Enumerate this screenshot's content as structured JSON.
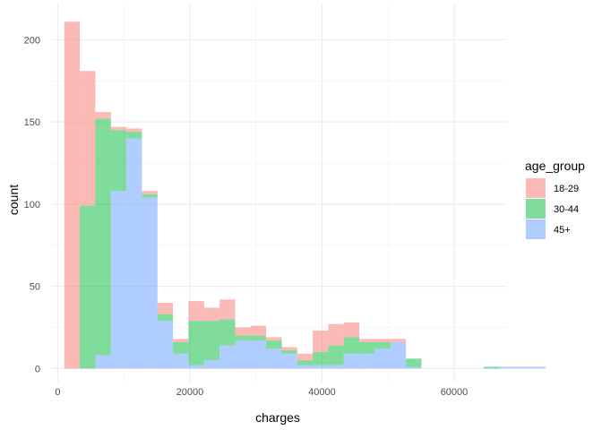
{
  "chart_data": {
    "type": "bar",
    "subtype": "stacked-histogram",
    "xlabel": "charges",
    "ylabel": "count",
    "xlim": [
      -1000,
      68000
    ],
    "ylim": [
      -8,
      222
    ],
    "xticks": [
      0,
      20000,
      40000,
      60000
    ],
    "yticks": [
      0,
      50,
      100,
      150,
      200
    ],
    "xtick_labels": [
      "0",
      "20000",
      "40000",
      "60000"
    ],
    "ytick_labels": [
      "0",
      "50",
      "100",
      "150",
      "200"
    ],
    "grid": true,
    "legend": {
      "title": "age_group",
      "placement": "right"
    },
    "bin_start": 1000,
    "bin_width": 2350,
    "series": [
      {
        "name": "18-29",
        "color": "#F8766D",
        "values": [
          211,
          82,
          4,
          2,
          2,
          2,
          7,
          2,
          12,
          8,
          12,
          5,
          6,
          2,
          2,
          4,
          13,
          13,
          9,
          2,
          2,
          2,
          0,
          0,
          0,
          0,
          0,
          0,
          0,
          0,
          0,
          0,
          0,
          0,
          0
        ]
      },
      {
        "name": "30-44",
        "color": "#00BA38",
        "values": [
          0,
          99,
          144,
          37,
          4,
          2,
          4,
          7,
          27,
          24,
          16,
          3,
          3,
          5,
          2,
          3,
          8,
          12,
          10,
          7,
          4,
          0,
          5,
          0,
          0,
          0,
          0,
          1,
          0,
          0,
          0,
          0,
          0,
          0,
          0
        ]
      },
      {
        "name": "45+",
        "color": "#619CFF",
        "values": [
          0,
          0,
          8,
          108,
          140,
          104,
          29,
          9,
          2,
          5,
          14,
          17,
          17,
          12,
          9,
          2,
          2,
          2,
          9,
          9,
          12,
          16,
          1,
          0,
          0,
          0,
          0,
          0,
          1,
          1,
          1,
          0,
          0,
          0,
          0
        ]
      }
    ]
  }
}
